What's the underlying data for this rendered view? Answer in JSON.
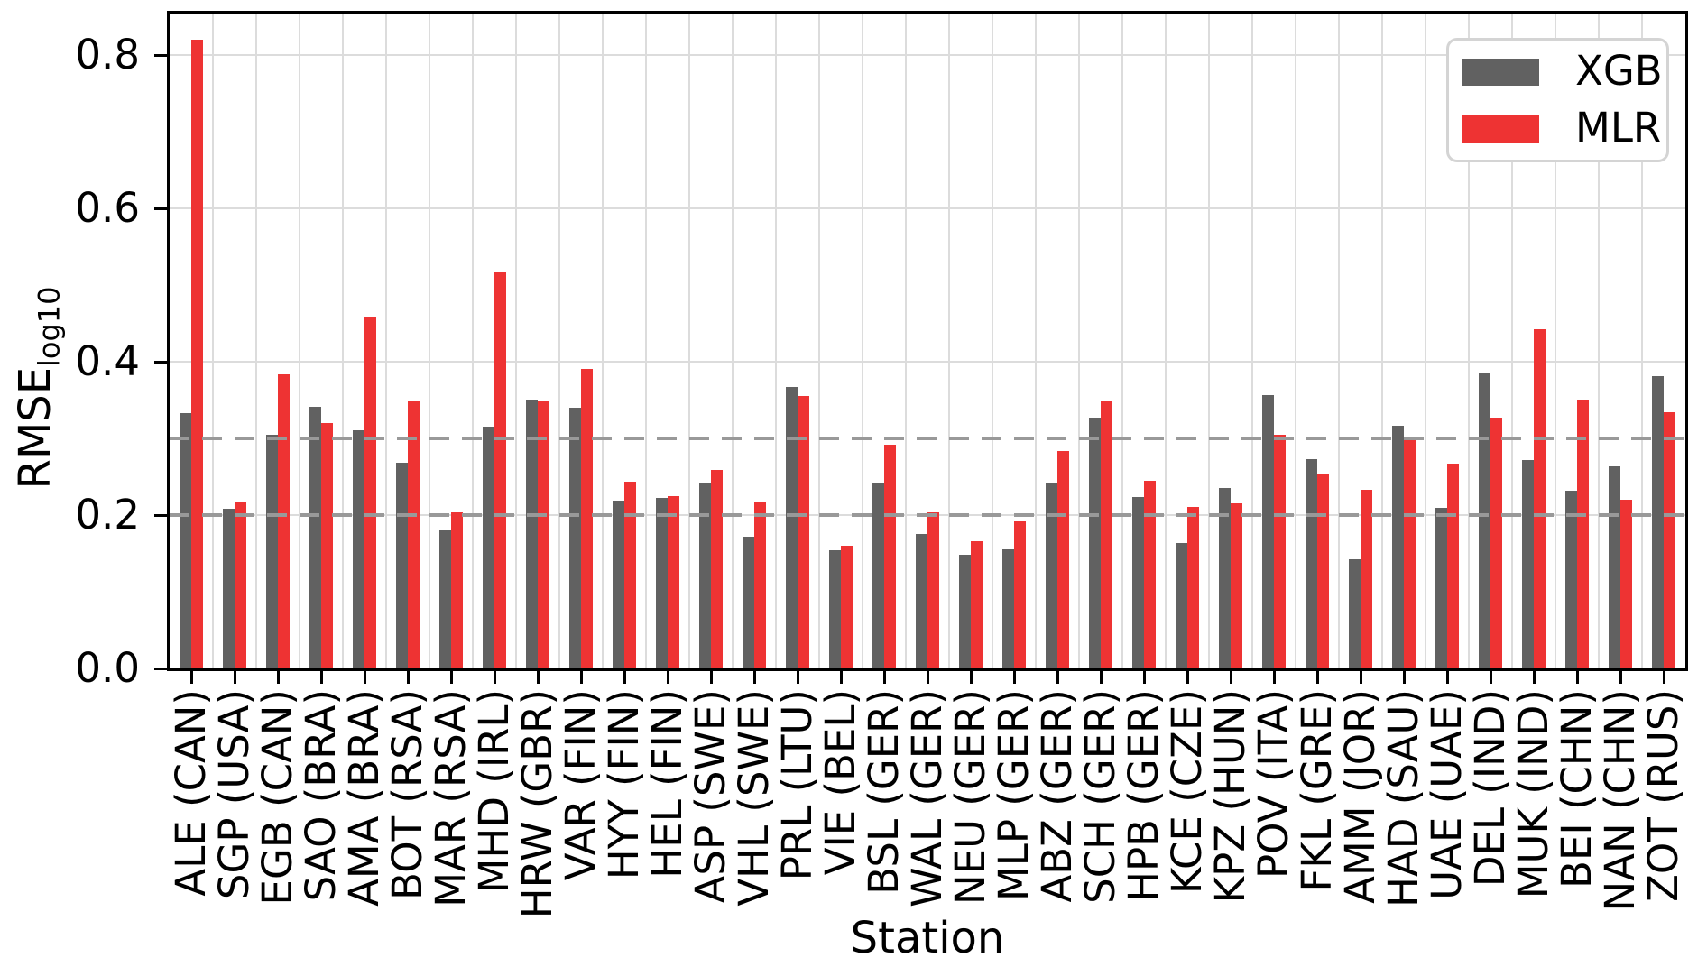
{
  "chart_data": {
    "type": "bar",
    "title": "",
    "xlabel": "Station",
    "ylabel_base": "RMSE",
    "ylabel_sub": "log10",
    "grid": true,
    "legend_position": "upper right",
    "ylim": [
      0.0,
      0.854
    ],
    "yticks": [
      {
        "value": 0.0,
        "label": "0.0"
      },
      {
        "value": 0.2,
        "label": "0.2"
      },
      {
        "value": 0.4,
        "label": "0.4"
      },
      {
        "value": 0.6,
        "label": "0.6"
      },
      {
        "value": 0.8,
        "label": "0.8"
      }
    ],
    "reference_lines": [
      {
        "value": 0.2,
        "style": "dashed",
        "color": "#999999"
      },
      {
        "value": 0.3,
        "style": "dashed",
        "color": "#999999"
      }
    ],
    "categories": [
      "ALE (CAN)",
      "SGP (USA)",
      "EGB (CAN)",
      "SAO (BRA)",
      "AMA (BRA)",
      "BOT (RSA)",
      "MAR (RSA)",
      "MHD (IRL)",
      "HRW (GBR)",
      "VAR (FIN)",
      "HYY (FIN)",
      "HEL (FIN)",
      "ASP (SWE)",
      "VHL (SWE)",
      "PRL (LTU)",
      "VIE (BEL)",
      "BSL (GER)",
      "WAL (GER)",
      "NEU (GER)",
      "MLP (GER)",
      "ABZ (GER)",
      "SCH (GER)",
      "HPB (GER)",
      "KCE (CZE)",
      "KPZ (HUN)",
      "POV (ITA)",
      "FKL (GRE)",
      "AMM (JOR)",
      "HAD (SAU)",
      "UAE (UAE)",
      "DEL (IND)",
      "MUK (IND)",
      "BEI (CHN)",
      "NAN (CHN)",
      "ZOT (RUS)"
    ],
    "series": [
      {
        "name": "XGB",
        "color": "#616161",
        "values": [
          0.333,
          0.208,
          0.305,
          0.341,
          0.311,
          0.268,
          0.18,
          0.315,
          0.351,
          0.34,
          0.219,
          0.222,
          0.242,
          0.172,
          0.367,
          0.154,
          0.242,
          0.175,
          0.148,
          0.155,
          0.242,
          0.327,
          0.223,
          0.164,
          0.235,
          0.356,
          0.273,
          0.142,
          0.317,
          0.21,
          0.385,
          0.272,
          0.232,
          0.264,
          0.381
        ]
      },
      {
        "name": "MLR",
        "color": "#ee3333",
        "values": [
          0.82,
          0.218,
          0.384,
          0.32,
          0.459,
          0.349,
          0.204,
          0.516,
          0.348,
          0.391,
          0.244,
          0.225,
          0.259,
          0.217,
          0.355,
          0.16,
          0.292,
          0.204,
          0.166,
          0.192,
          0.284,
          0.349,
          0.245,
          0.211,
          0.215,
          0.305,
          0.254,
          0.233,
          0.3,
          0.267,
          0.327,
          0.442,
          0.351,
          0.22,
          0.334
        ]
      }
    ]
  }
}
